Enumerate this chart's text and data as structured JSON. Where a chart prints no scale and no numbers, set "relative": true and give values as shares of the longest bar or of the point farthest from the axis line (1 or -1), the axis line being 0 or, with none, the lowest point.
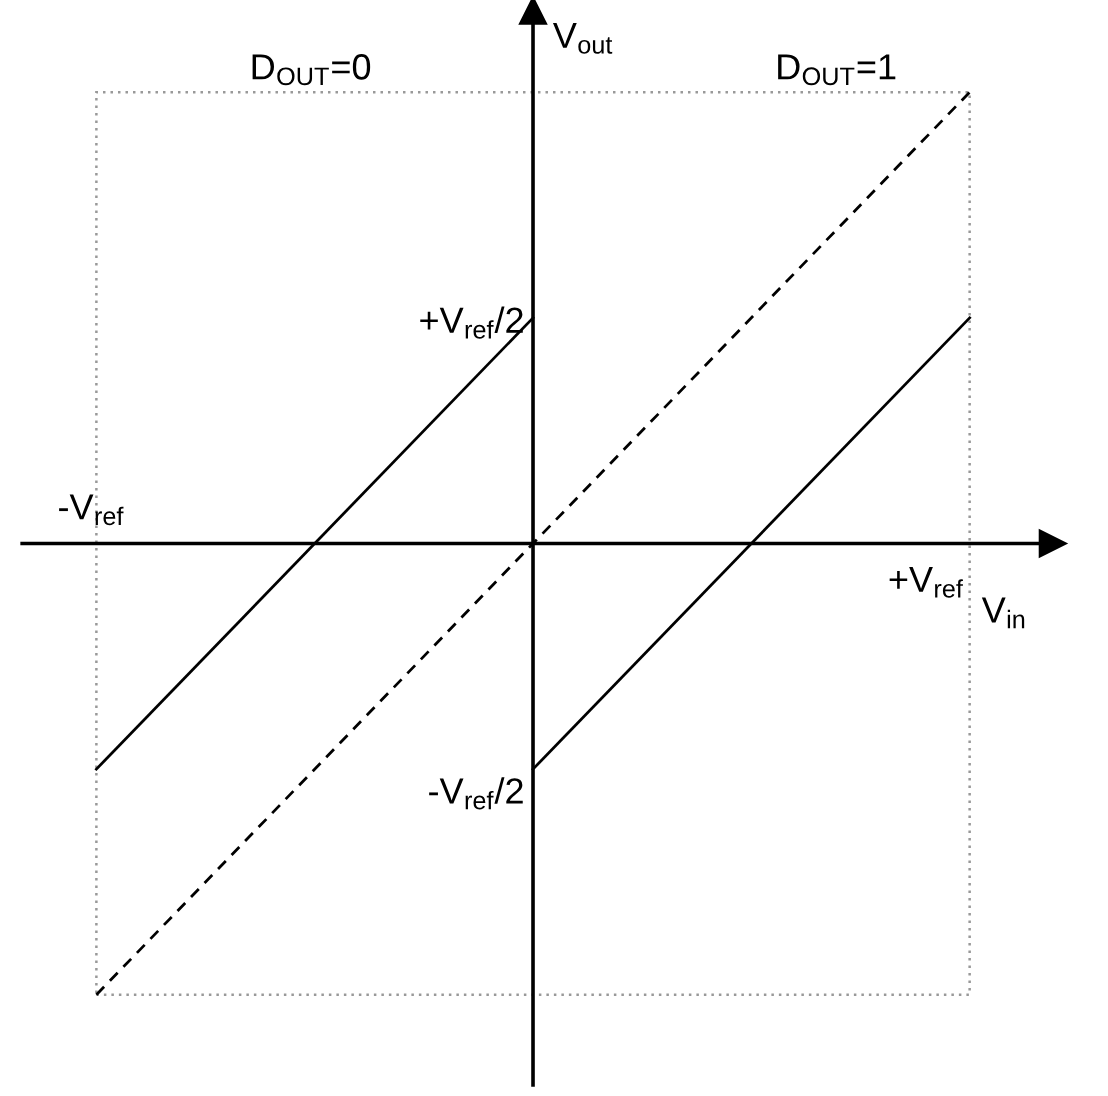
{
  "chart_data": {
    "type": "line",
    "relative": true,
    "xlabel": "V$_{in}$",
    "ylabel": "V$_{out}$",
    "annotations": [
      "D$_{OUT}$=0",
      "D$_{OUT}$=1",
      "-V$_{ref}$",
      "+V$_{ref}$",
      "+V$_{ref}$/2",
      "-V$_{ref}$/2"
    ],
    "categories": [
      null,
      null,
      null
    ],
    "series": [
      {
        "color": "#000000",
        "values": [
          -0.5,
          0.5,
          null
        ],
        "line_style": "solid"
      },
      {
        "color": "#000000",
        "values": [
          null,
          -0.5,
          0.5
        ],
        "line_style": "solid"
      },
      {
        "color": "#000000",
        "values": [
          -1,
          0,
          1
        ],
        "line_style": "dashed"
      }
    ],
    "legend": false,
    "marker": "none"
  }
}
